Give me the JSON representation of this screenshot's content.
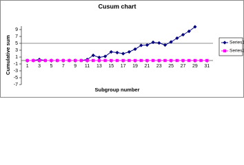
{
  "chart_data": {
    "type": "line",
    "title": "Cusum chart",
    "x_label": "Subgroup number",
    "y_label": "Cumulative sum",
    "x": [
      1,
      2,
      3,
      4,
      5,
      6,
      7,
      8,
      9,
      10,
      11,
      12,
      13,
      14,
      15,
      16,
      17,
      18,
      19,
      20,
      21,
      22,
      23,
      24,
      25,
      26,
      27,
      28,
      29,
      30,
      31
    ],
    "series": [
      {
        "name": "Series1",
        "color": "#000080",
        "marker": "diamond",
        "values": [
          0,
          0,
          0.3,
          0,
          0,
          0,
          0,
          0,
          0,
          0,
          0.3,
          1.5,
          0.9,
          1.2,
          2.5,
          2.3,
          2.0,
          2.5,
          3.3,
          4.4,
          4.5,
          5.3,
          5.1,
          4.5,
          5.4,
          6.5,
          7.5,
          8.5,
          9.8,
          null,
          null
        ]
      },
      {
        "name": "Series2",
        "color": "#ff00ff",
        "marker": "square",
        "values": [
          0,
          0,
          0,
          0,
          0,
          0,
          0,
          0,
          0,
          0,
          0,
          0,
          0,
          0,
          0,
          0,
          0,
          0,
          0,
          0,
          0,
          0,
          0,
          0,
          0,
          0,
          0,
          0,
          0,
          0,
          0
        ]
      }
    ],
    "reference_line": 5,
    "xlim": [
      0,
      32
    ],
    "xticks": [
      1,
      3,
      5,
      7,
      9,
      11,
      13,
      15,
      17,
      19,
      21,
      23,
      25,
      27,
      29,
      31
    ],
    "ylim": [
      -7,
      10
    ],
    "yticks": [
      -7,
      -5,
      -3,
      -1,
      1,
      3,
      5,
      7,
      9
    ],
    "legend": "right"
  }
}
